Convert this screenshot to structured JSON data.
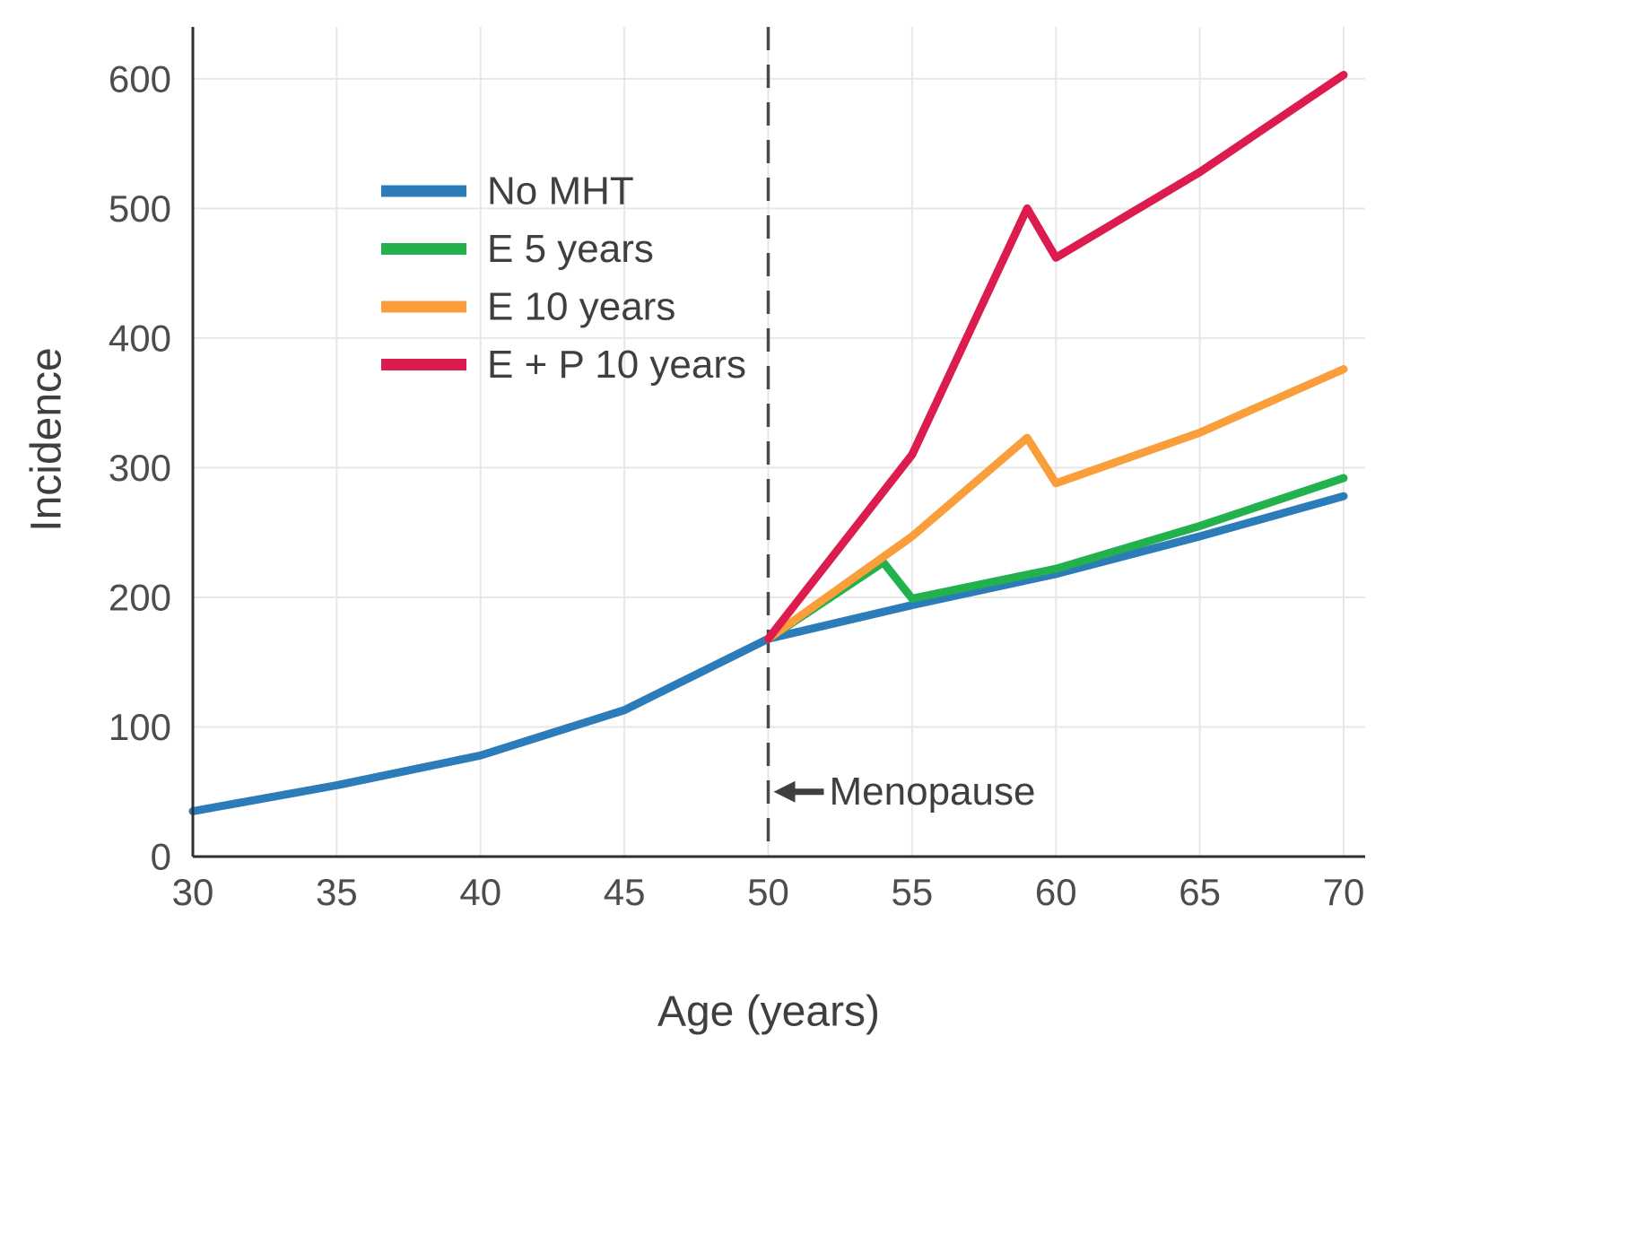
{
  "colors": {
    "background": "#ffffff",
    "grid": "#e7e7e7",
    "axis": "#2f2f2f",
    "tick_label": "#4d4d4d",
    "dashed_line": "#4a4a4a",
    "annotation_text": "#3f3f3f"
  },
  "chart_data": {
    "type": "line",
    "title": "",
    "xlabel": "Age (years)",
    "ylabel": "Incidence",
    "xlim": [
      30,
      70
    ],
    "ylim": [
      0,
      640
    ],
    "xticks": [
      30,
      35,
      40,
      45,
      50,
      55,
      60,
      65,
      70
    ],
    "yticks": [
      0,
      100,
      200,
      300,
      400,
      500,
      600
    ],
    "grid": true,
    "legend_position": "upper-left-inside",
    "annotation": {
      "text": "Menopause",
      "x": 50,
      "y": 50,
      "arrow": "left"
    },
    "series": [
      {
        "name": "No MHT",
        "color": "#2b7cb9",
        "x": [
          30,
          35,
          40,
          45,
          50,
          55,
          60,
          65,
          70
        ],
        "y": [
          35,
          55,
          78,
          113,
          168,
          194,
          218,
          247,
          278
        ]
      },
      {
        "name": "E 5 years",
        "color": "#23b14d",
        "x": [
          50,
          54,
          55,
          60,
          65,
          70
        ],
        "y": [
          168,
          227,
          199,
          222,
          255,
          292
        ]
      },
      {
        "name": "E 10 years",
        "color": "#fa9d3b",
        "x": [
          50,
          55,
          59,
          60,
          65,
          70
        ],
        "y": [
          168,
          247,
          323,
          288,
          327,
          376
        ]
      },
      {
        "name": "E + P 10 years",
        "color": "#dc1c4e",
        "x": [
          50,
          55,
          59,
          60,
          65,
          70
        ],
        "y": [
          168,
          310,
          500,
          462,
          528,
          603
        ]
      }
    ]
  }
}
